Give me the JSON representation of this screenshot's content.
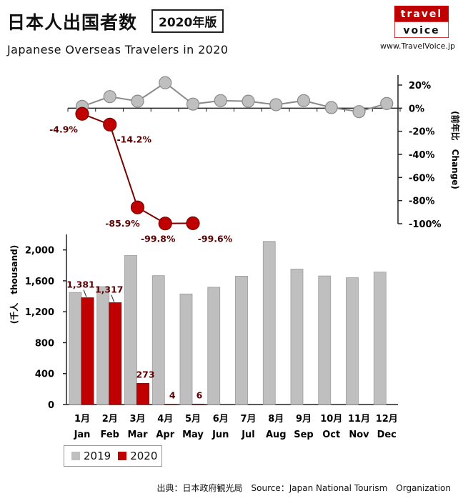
{
  "header": {
    "title_jp": "日本人出国者数",
    "title_badge": "2020年版",
    "subtitle": "Japanese Overseas Travelers in 2020",
    "logo_line1": "travel",
    "logo_line2": "voice",
    "url": "www.TravelVoice.jp",
    "source": "出典：日本政府観光局　Source：Japan National Tourism　Organization"
  },
  "colors": {
    "series_2019": "#bfbfbf",
    "series_2020": "#c00000",
    "logo_red": "#c00000"
  },
  "chart_data": [
    {
      "type": "line",
      "categories": [
        "1月 Jan",
        "2月 Feb",
        "3月 Mar",
        "4月 Apr",
        "5月 May",
        "6月 Jun",
        "7月 Jul",
        "8月 Aug",
        "9月 Sep",
        "10月 Oct",
        "11月 Nov",
        "12月 Dec"
      ],
      "ylabel": "(前年比　Change)",
      "ylim": [
        -100,
        20
      ],
      "yticks": [
        "20%",
        "0%",
        "-20%",
        "-40%",
        "-60%",
        "-80%",
        "-100%"
      ],
      "series": [
        {
          "name": "2019",
          "values": [
            1.5,
            10,
            6,
            22,
            3.5,
            6.5,
            6,
            3,
            6.5,
            0.5,
            -3,
            4
          ]
        },
        {
          "name": "2020",
          "values": [
            -4.9,
            -14.2,
            -85.9,
            -99.8,
            -99.6,
            null,
            null,
            null,
            null,
            null,
            null,
            null
          ],
          "labels": [
            "-4.9%",
            "-14.2%",
            "-85.9%",
            "-99.8%",
            "-99.6%"
          ]
        }
      ]
    },
    {
      "type": "bar",
      "categories_jp": [
        "1月",
        "2月",
        "3月",
        "4月",
        "5月",
        "6月",
        "7月",
        "8月",
        "9月",
        "10月",
        "11月",
        "12月"
      ],
      "categories_en": [
        "Jan",
        "Feb",
        "Mar",
        "Apr",
        "May",
        "Jun",
        "Jul",
        "Aug",
        "Sep",
        "Oct",
        "Nov",
        "Dec"
      ],
      "ylabel": "(千人　thousand)",
      "ylim": [
        0,
        2200
      ],
      "yticks": [
        "0",
        "400",
        "800",
        "1,200",
        "1,600",
        "2,000"
      ],
      "series": [
        {
          "name": "2019",
          "values": [
            1450,
            1525,
            1927,
            1667,
            1430,
            1517,
            1660,
            2110,
            1752,
            1663,
            1640,
            1713
          ]
        },
        {
          "name": "2020",
          "values": [
            1381,
            1317,
            273,
            4,
            6,
            null,
            null,
            null,
            null,
            null,
            null,
            null
          ],
          "labels": [
            "1,381",
            "1,317",
            "273",
            "4",
            "6"
          ]
        }
      ]
    }
  ]
}
